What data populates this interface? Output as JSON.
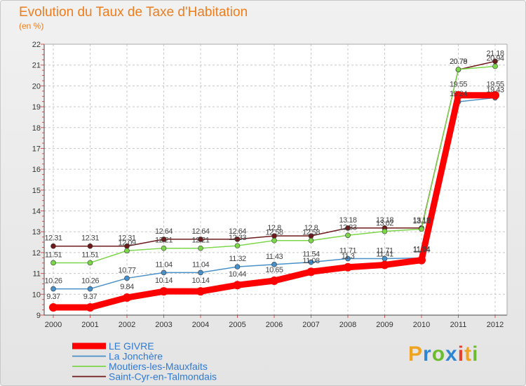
{
  "chart_data": {
    "type": "line",
    "title": "Evolution du Taux de Taxe d'Habitation",
    "subtitle": "(en %)",
    "x": [
      "2000",
      "2001",
      "2002",
      "2003",
      "2004",
      "2005",
      "2006",
      "2007",
      "2008",
      "2009",
      "2010",
      "2011",
      "2012"
    ],
    "yticks": [
      "9",
      "10",
      "11",
      "12",
      "13",
      "14",
      "15",
      "16",
      "17",
      "18",
      "19",
      "20",
      "21",
      "22"
    ],
    "ylim": [
      9,
      22
    ],
    "grid": true,
    "legend": "bottom-left",
    "series": [
      {
        "name": "LE GIVRE",
        "color": "#ff0000",
        "values": [
          9.37,
          9.37,
          9.84,
          10.14,
          10.14,
          10.44,
          10.65,
          11.08,
          11.3,
          11.41,
          11.64,
          19.55,
          19.55
        ],
        "labels": [
          "9.37",
          "9.37",
          "9.84",
          "10.14",
          "10.14",
          "10.44",
          "10.65",
          "11.08",
          "11.3",
          "11.41",
          "11.64",
          "19.55",
          "19.55"
        ]
      },
      {
        "name": "La Jonchère",
        "color": "#4a90c8",
        "values": [
          10.26,
          10.26,
          10.77,
          11.04,
          11.04,
          11.32,
          11.43,
          11.54,
          11.71,
          11.71,
          11.74,
          19.24,
          19.43
        ],
        "labels": [
          "10.26",
          "10.26",
          "10.77",
          "11.04",
          "11.04",
          "11.32",
          "11.43",
          "11.54",
          "11.71",
          "11.71",
          "11.74",
          "19.24",
          "19.43"
        ]
      },
      {
        "name": "Moutiers-les-Mauxfaits",
        "color": "#7cd64a",
        "values": [
          11.51,
          11.51,
          12.09,
          12.21,
          12.21,
          12.33,
          12.58,
          12.58,
          12.83,
          13.02,
          13.13,
          20.79,
          20.94
        ],
        "labels": [
          "11.51",
          "11.51",
          "12.09",
          "12.21",
          "12.21",
          "12.33",
          "12.58",
          "12.58",
          "12.83",
          "13.02",
          "13.13",
          "20.79",
          "20.94"
        ]
      },
      {
        "name": "Saint-Cyr-en-Talmondais",
        "color": "#6e1a1a",
        "values": [
          12.31,
          12.31,
          12.31,
          12.64,
          12.64,
          12.64,
          12.8,
          12.8,
          13.18,
          13.18,
          13.18,
          20.78,
          21.18
        ],
        "labels": [
          "12.31",
          "12.31",
          "12.31",
          "12.64",
          "12.64",
          "12.64",
          "12.8",
          "12.8",
          "13.18",
          "13.18",
          "13.18",
          "20.78",
          "21.18"
        ]
      }
    ]
  },
  "logo": {
    "letters": [
      "P",
      "r",
      "o",
      "x",
      "i",
      "t",
      "i"
    ],
    "colors": [
      "#f0a321",
      "#2e86d1",
      "#6bbd2f",
      "#2e86d1",
      "#e8402c",
      "#f0a321",
      "#6bbd2f"
    ]
  }
}
